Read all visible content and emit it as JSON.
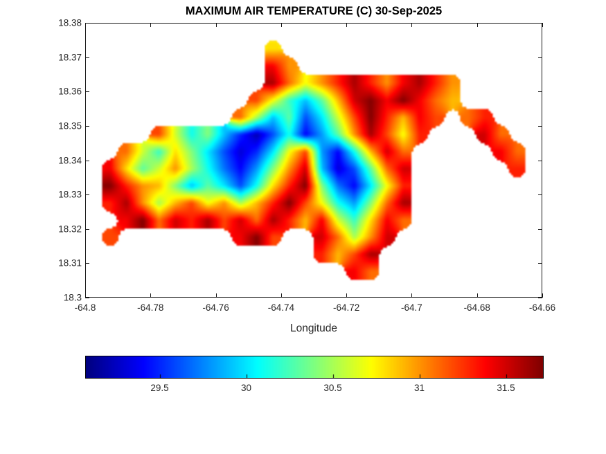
{
  "chart_data": {
    "type": "heatmap",
    "title": "MAXIMUM AIR TEMPERATURE (C) 30-Sep-2025",
    "xlabel": "Longitude",
    "ylabel": "",
    "colormap": "jet",
    "x_range": [
      -64.8,
      -64.66
    ],
    "y_range": [
      18.3,
      18.38
    ],
    "color_range": [
      29.07,
      31.71
    ],
    "x_ticks": [
      -64.8,
      -64.78,
      -64.76,
      -64.74,
      -64.72,
      -64.7,
      -64.68,
      -64.66
    ],
    "x_tick_labels": [
      "-64.8",
      "-64.78",
      "-64.76",
      "-64.74",
      "-64.72",
      "-64.7",
      "-64.68",
      "-64.66"
    ],
    "y_ticks": [
      18.3,
      18.31,
      18.32,
      18.33,
      18.34,
      18.35,
      18.36,
      18.37,
      18.38
    ],
    "y_tick_labels": [
      "18.3",
      "18.31",
      "18.32",
      "18.33",
      "18.34",
      "18.35",
      "18.36",
      "18.37",
      "18.38"
    ],
    "colorbar_ticks": [
      29.5,
      30,
      30.5,
      31,
      31.5
    ],
    "colorbar_tick_labels": [
      "29.5",
      "30",
      "30.5",
      "31",
      "31.5"
    ],
    "colors": {
      "background": "#ffffff",
      "axis": "#262626"
    },
    "grid": {
      "lon_start": -64.8,
      "lon_step": 0.005,
      "lat_start": 18.38,
      "lat_step": -0.005,
      "units": "degrees C",
      "values": [
        [
          null,
          null,
          null,
          null,
          null,
          null,
          null,
          null,
          null,
          null,
          null,
          null,
          null,
          null,
          null,
          null,
          null,
          null,
          null,
          null,
          null,
          null,
          null,
          null,
          null,
          null,
          null,
          null
        ],
        [
          null,
          null,
          null,
          null,
          null,
          null,
          null,
          null,
          null,
          null,
          null,
          30.8,
          null,
          null,
          null,
          null,
          null,
          null,
          null,
          null,
          null,
          null,
          null,
          null,
          null,
          null,
          null,
          null
        ],
        [
          null,
          null,
          null,
          null,
          null,
          null,
          null,
          null,
          null,
          null,
          null,
          31.4,
          31.0,
          null,
          null,
          null,
          null,
          null,
          null,
          null,
          null,
          null,
          null,
          null,
          null,
          null,
          null,
          null
        ],
        [
          null,
          null,
          null,
          null,
          null,
          null,
          null,
          null,
          null,
          null,
          null,
          31.6,
          31.1,
          30.7,
          31.0,
          31.3,
          31.6,
          31.3,
          31.0,
          31.4,
          31.6,
          31.3,
          31.0,
          null,
          null,
          null,
          null,
          null
        ],
        [
          null,
          null,
          null,
          null,
          null,
          null,
          null,
          null,
          null,
          null,
          31.2,
          30.7,
          30.2,
          29.9,
          30.3,
          30.9,
          31.5,
          31.7,
          31.4,
          31.7,
          31.4,
          31.1,
          30.9,
          null,
          null,
          null,
          null,
          null
        ],
        [
          null,
          null,
          null,
          null,
          null,
          null,
          null,
          null,
          null,
          31.1,
          30.5,
          29.9,
          30.3,
          29.6,
          30.0,
          30.6,
          31.2,
          31.7,
          31.3,
          30.9,
          31.4,
          31.2,
          null,
          31.1,
          31.3,
          null,
          null,
          null
        ],
        [
          null,
          null,
          null,
          null,
          31.2,
          30.6,
          30.1,
          30.4,
          29.9,
          29.5,
          29.2,
          29.6,
          30.1,
          29.4,
          29.8,
          30.3,
          31.0,
          31.6,
          31.2,
          30.7,
          31.3,
          null,
          null,
          null,
          31.5,
          31.1,
          null,
          null
        ],
        [
          null,
          null,
          31.1,
          30.6,
          30.2,
          30.8,
          30.4,
          30.0,
          29.6,
          29.3,
          29.5,
          30.0,
          30.7,
          31.2,
          29.8,
          29.4,
          30.1,
          30.9,
          31.5,
          31.1,
          null,
          null,
          null,
          null,
          null,
          31.4,
          31.1,
          null
        ],
        [
          null,
          31.4,
          30.8,
          30.3,
          30.6,
          31.0,
          30.5,
          30.1,
          29.7,
          29.4,
          29.8,
          30.4,
          31.0,
          31.5,
          29.9,
          29.3,
          29.6,
          30.3,
          31.1,
          31.5,
          null,
          null,
          null,
          null,
          null,
          null,
          31.3,
          null
        ],
        [
          null,
          31.7,
          31.3,
          31.0,
          30.9,
          30.4,
          29.9,
          30.3,
          30.0,
          29.6,
          30.1,
          30.8,
          31.3,
          31.7,
          30.4,
          29.7,
          29.4,
          30.0,
          30.7,
          31.3,
          null,
          null,
          null,
          null,
          null,
          null,
          null,
          null
        ],
        [
          null,
          31.3,
          31.6,
          31.0,
          30.5,
          30.9,
          31.2,
          30.7,
          31.0,
          30.5,
          30.9,
          31.3,
          31.7,
          31.2,
          30.7,
          30.1,
          29.8,
          30.4,
          31.1,
          31.6,
          null,
          null,
          null,
          null,
          null,
          null,
          null,
          null
        ],
        [
          null,
          null,
          31.4,
          31.7,
          31.1,
          31.5,
          31.3,
          31.6,
          31.2,
          31.5,
          31.1,
          31.6,
          31.3,
          30.9,
          31.4,
          30.6,
          30.2,
          30.8,
          31.4,
          31.1,
          null,
          null,
          null,
          null,
          null,
          null,
          null,
          null
        ],
        [
          null,
          31.2,
          null,
          null,
          null,
          null,
          null,
          null,
          null,
          31.4,
          31.7,
          31.2,
          null,
          null,
          31.5,
          31.1,
          30.5,
          31.0,
          31.5,
          null,
          null,
          null,
          null,
          null,
          null,
          null,
          null,
          null
        ],
        [
          null,
          null,
          null,
          null,
          null,
          null,
          null,
          null,
          null,
          null,
          null,
          null,
          null,
          null,
          31.3,
          30.9,
          31.2,
          31.6,
          null,
          null,
          null,
          null,
          null,
          null,
          null,
          null,
          null,
          null
        ],
        [
          null,
          null,
          null,
          null,
          null,
          null,
          null,
          null,
          null,
          null,
          null,
          null,
          null,
          null,
          null,
          null,
          31.4,
          31.1,
          null,
          null,
          null,
          null,
          null,
          null,
          null,
          null,
          null,
          null
        ],
        [
          null,
          null,
          null,
          null,
          null,
          null,
          null,
          null,
          null,
          null,
          null,
          null,
          null,
          null,
          null,
          null,
          null,
          null,
          null,
          null,
          null,
          null,
          null,
          null,
          null,
          null,
          null,
          null
        ]
      ]
    }
  }
}
